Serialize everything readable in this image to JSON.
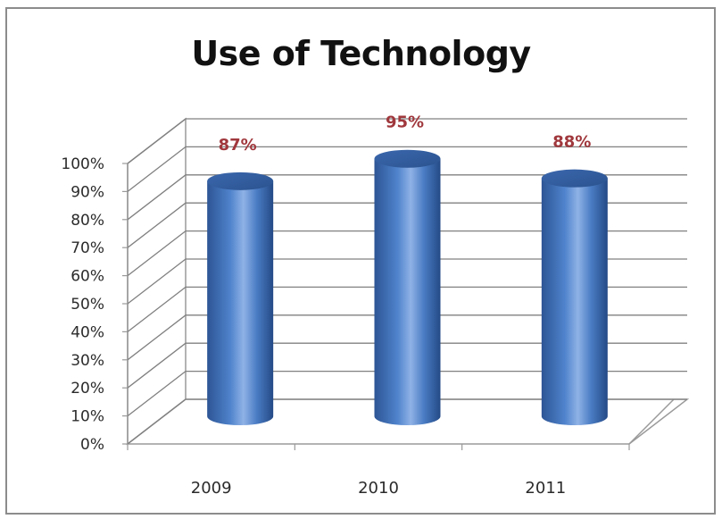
{
  "chart_data": {
    "type": "bar",
    "title": "Use of Technology",
    "categories": [
      "2009",
      "2010",
      "2011"
    ],
    "values": [
      87,
      95,
      88
    ],
    "data_labels": [
      "87%",
      "95%",
      "88%"
    ],
    "y_ticks": [
      "0%",
      "10%",
      "20%",
      "30%",
      "40%",
      "50%",
      "60%",
      "70%",
      "80%",
      "90%",
      "100%"
    ],
    "ylim": [
      0,
      100
    ],
    "grid": true,
    "legend": "none",
    "style": "3d-cylinder",
    "colors": {
      "bar": "#4a7cc4",
      "bar_dark": "#2d5595",
      "bar_light": "#8fb2e6",
      "data_label": "#a0383d",
      "grid": "#808080"
    }
  }
}
